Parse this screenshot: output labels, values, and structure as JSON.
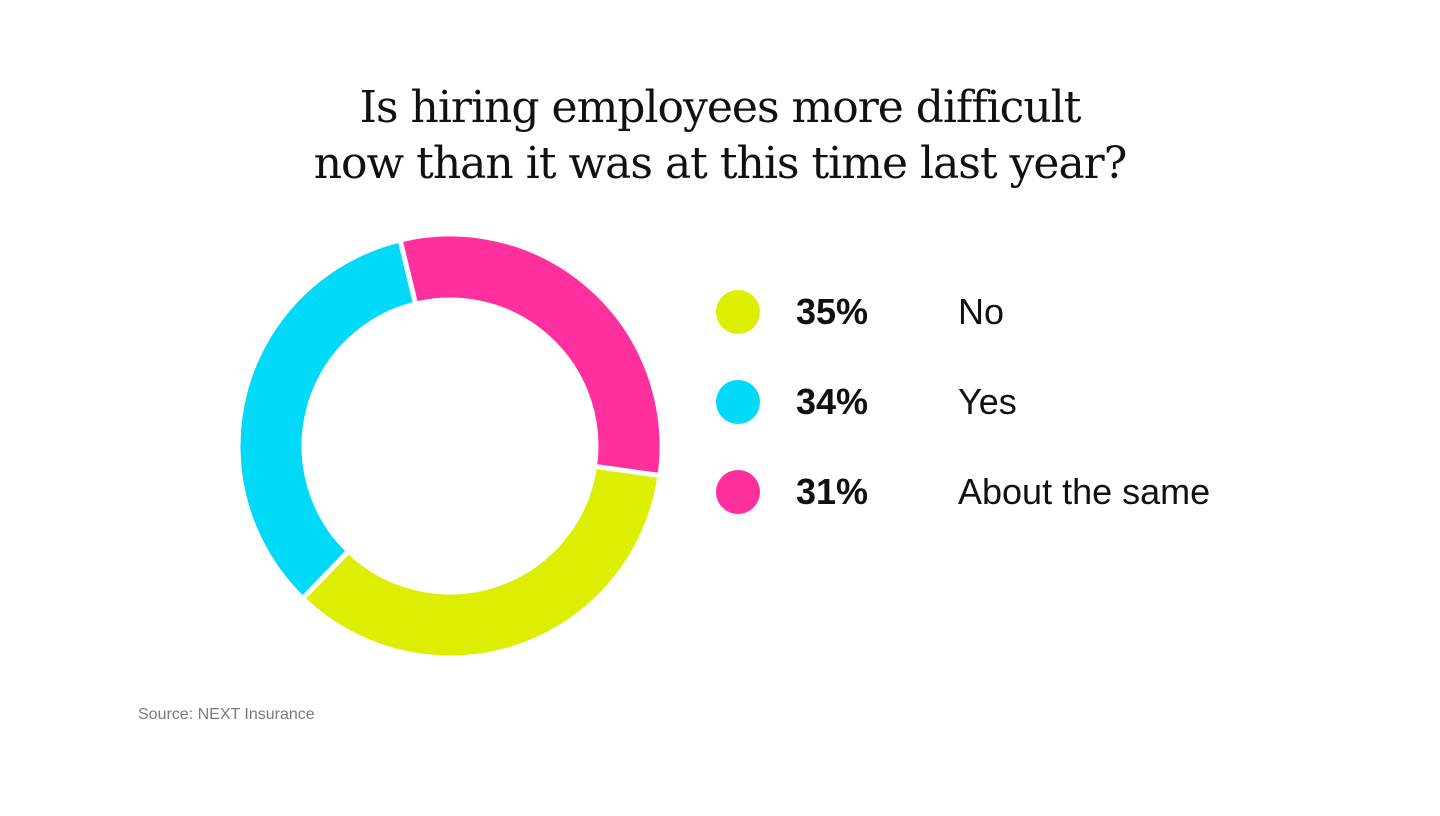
{
  "chart_data": {
    "type": "pie",
    "style": "donut",
    "title": [
      "Is hiring employees more difficult",
      "now than it was at this time last year?"
    ],
    "slices": [
      {
        "label": "No",
        "value": 35,
        "display": "35%",
        "color": "#dcef00"
      },
      {
        "label": "Yes",
        "value": 34,
        "display": "34%",
        "color": "#00d9f8"
      },
      {
        "label": "About the same",
        "value": 31,
        "display": "31%",
        "color": "#ff2f9e"
      }
    ],
    "legend_position": "right"
  },
  "source": "Source: NEXT Insurance"
}
